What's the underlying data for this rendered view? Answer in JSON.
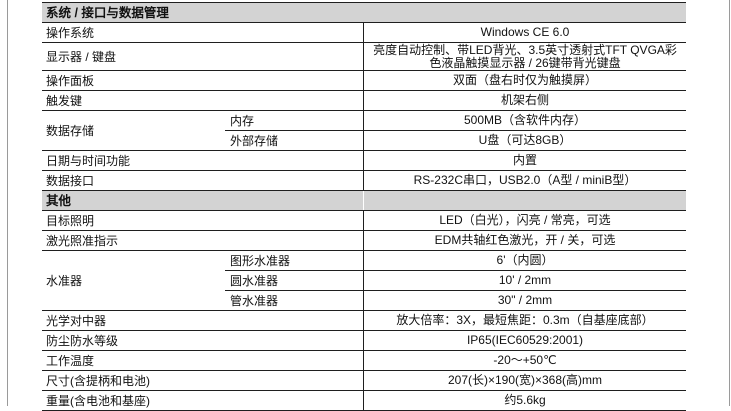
{
  "colors": {
    "table_border": "#1f1f1f",
    "section_header_bg": "#d3d3d3",
    "page_edge_line": "#9a9a9a",
    "text": "#111111",
    "page_bg": "#ffffff"
  },
  "table": {
    "sections": [
      {
        "header": {
          "label": "系统 / 接口与数据管理",
          "column_divider": false
        },
        "rows": [
          {
            "label": "操作系统",
            "value": "Windows CE 6.0"
          },
          {
            "label": "显示器 / 键盘",
            "value": "亮度自动控制、带LED背光、3.5英寸透射式TFT QVGA彩色液晶触摸显示器 / 26键带背光键盘",
            "tall": true
          },
          {
            "label": "操作面板",
            "value": "双面（盘右时仅为触摸屏）"
          },
          {
            "label": "触发键",
            "value": "机架右侧"
          },
          {
            "label": "数据存储",
            "subrows": [
              {
                "sublabel": "内存",
                "value": "500MB（含软件内存）"
              },
              {
                "sublabel": "外部存储",
                "value": "U盘（可达8GB）"
              }
            ]
          },
          {
            "label": "日期与时间功能",
            "value": "内置"
          },
          {
            "label": "数据接口",
            "value": "RS-232C串口，USB2.0（A型 / miniB型）"
          }
        ]
      },
      {
        "header": {
          "label": "其他",
          "column_divider": true
        },
        "rows": [
          {
            "label": "目标照明",
            "value": "LED（白光），闪亮 / 常亮，可选"
          },
          {
            "label": "激光照准指示",
            "value": "EDM共轴红色激光，开 / 关，可选"
          },
          {
            "label": "水准器",
            "subrows": [
              {
                "sublabel": "图形水准器",
                "value": "6'（内圆）"
              },
              {
                "sublabel": "圆水准器",
                "value": "10' / 2mm"
              },
              {
                "sublabel": "管水准器",
                "value": "30\" / 2mm"
              }
            ]
          },
          {
            "label": "光学对中器",
            "value": "放大倍率：3X，最短焦距：0.3m（自基座底部）"
          },
          {
            "label": "防尘防水等级",
            "value": "IP65(IEC60529:2001)"
          },
          {
            "label": "工作温度",
            "value": "-20～+50℃"
          },
          {
            "label": "尺寸(含提柄和电池)",
            "value": "207(长)×190(宽)×368(高)mm"
          },
          {
            "label": "重量(含电池和基座)",
            "value": "约5.6kg"
          }
        ]
      }
    ]
  }
}
